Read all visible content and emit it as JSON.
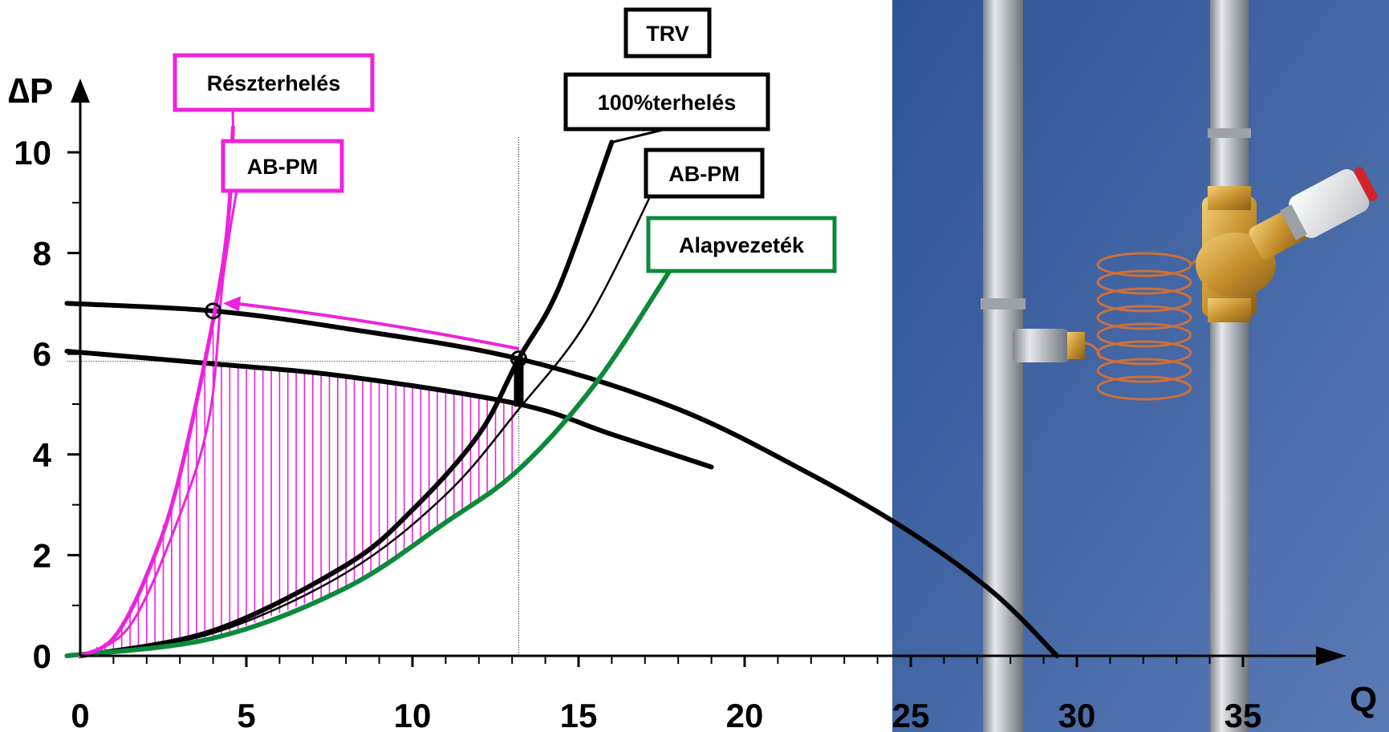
{
  "chart_data": {
    "type": "line",
    "xlabel": "Q",
    "ylabel": "∆P",
    "xlim": [
      0,
      35
    ],
    "ylim": [
      0,
      10
    ],
    "x_ticks": [
      "0",
      "5",
      "10",
      "15",
      "20",
      "25",
      "30",
      "35"
    ],
    "y_ticks": [
      "0",
      "2",
      "4",
      "6",
      "8",
      "10"
    ],
    "grid": false,
    "series": [
      {
        "name": "",
        "role": "pump-curve-high",
        "color": "#000000",
        "x": [
          -0.4,
          4,
          8,
          13.2,
          18,
          22,
          25,
          27.5,
          29.4
        ],
        "y": [
          7.0,
          6.85,
          6.5,
          5.9,
          4.9,
          3.6,
          2.45,
          1.25,
          0
        ]
      },
      {
        "name": "",
        "role": "pump-curve-low",
        "color": "#000000",
        "x": [
          -0.4,
          4,
          8,
          13.2,
          16,
          19
        ],
        "y": [
          6.05,
          5.8,
          5.55,
          5.0,
          4.4,
          3.75
        ]
      },
      {
        "name": "TRV 100%terhelés",
        "role": "system-curve-trv",
        "color": "#000000",
        "x": [
          0,
          4,
          8,
          10,
          12,
          13.2,
          14.4,
          16
        ],
        "y": [
          0,
          0.5,
          1.8,
          2.9,
          4.4,
          5.9,
          7.3,
          10.2
        ]
      },
      {
        "name": "AB-PM",
        "role": "system-curve-abpm",
        "color": "#000000",
        "x": [
          0,
          4,
          8,
          11,
          13.2,
          15.3,
          17.5
        ],
        "y": [
          0,
          0.45,
          1.65,
          3.2,
          4.9,
          6.7,
          9.6
        ]
      },
      {
        "name": "Alapvezeték",
        "role": "base-pipe",
        "color": "#0b8a3a",
        "x": [
          -0.4,
          4,
          8,
          11,
          13.2,
          15.5,
          17.7
        ],
        "y": [
          0,
          0.35,
          1.35,
          2.65,
          3.7,
          5.4,
          7.6
        ]
      },
      {
        "name": "Részterhelés",
        "role": "partial-load",
        "color": "#ee22dd",
        "x": [
          0,
          1,
          2,
          3,
          4.3,
          4.6
        ],
        "y": [
          0,
          0.35,
          1.6,
          3.6,
          7.8,
          10.5
        ]
      },
      {
        "name": "AB-PM",
        "role": "partial-load-abpm",
        "color": "#ee22dd",
        "x": [
          0,
          1.5,
          3,
          3.9,
          4.3,
          4.8
        ],
        "y": [
          0,
          0.6,
          2.8,
          4.8,
          7.5,
          9.6
        ]
      }
    ],
    "operating_points": [
      {
        "x": 4,
        "y": 6.85
      },
      {
        "x": 13.2,
        "y": 5.9
      }
    ],
    "annotations": {
      "shaded_region": {
        "from_x": 4.1,
        "to_x": 13.2,
        "color": "#ee22dd"
      },
      "arrow": {
        "from": [
          13.2,
          6.1
        ],
        "to": [
          4.3,
          7.0
        ],
        "color": "#ee22dd"
      },
      "reference_y": 5.85,
      "reference_x": 13.2,
      "pressure_drop_bar": {
        "x": 13.2,
        "from_y": 5.9,
        "to_y": 4.95
      }
    },
    "labels": [
      {
        "text": "TRV",
        "color": "#000000"
      },
      {
        "text": "100%terhelés",
        "color": "#000000"
      },
      {
        "text": "AB-PM",
        "color": "#000000"
      },
      {
        "text": "Alapvezeték",
        "color": "#0b8a3a"
      },
      {
        "text": "Részterhelés",
        "color": "#ee22dd"
      },
      {
        "text": "AB-PM",
        "color": "#ee22dd"
      }
    ]
  },
  "photo": {
    "background_color": "#3a5f9e",
    "pipe_color": "#c6cad0",
    "valve_color": "#c8922f",
    "coil_color": "#c9703d",
    "actuator_color": "#eeeeee"
  }
}
